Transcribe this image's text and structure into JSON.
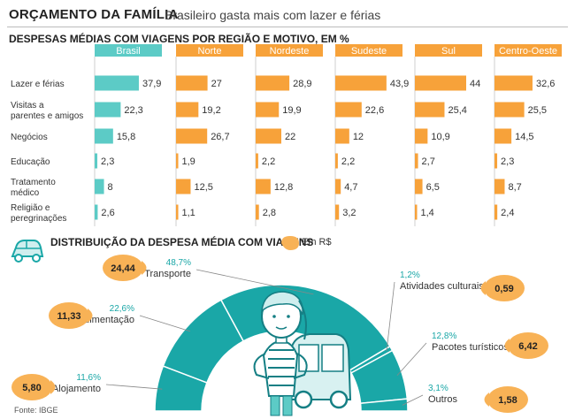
{
  "header": {
    "title": "ORÇAMENTO DA FAMÍLIA",
    "subtitle": "Brasileiro gasta mais com lazer e férias"
  },
  "table_title": "DESPESAS MÉDIAS COM VIAGENS POR REGIÃO E MOTIVO, EM %",
  "section2_title": "DISTRIBUIÇÃO DA DESPESA MÉDIA COM VIAGENS",
  "unit_label": "Em R$",
  "source": "Fonte: IBGE",
  "colors": {
    "brasil": "#5ccbc6",
    "regions": "#f7a23a",
    "teal": "#1aa7a7",
    "bubble": "#f8b256"
  },
  "chart_data": [
    {
      "type": "bar",
      "title": "DESPESAS MÉDIAS COM VIAGENS POR REGIÃO E MOTIVO, EM %",
      "categories": [
        "Lazer e férias",
        "Visitas a parentes e amigos",
        "Negócios",
        "Educação",
        "Tratamento médico",
        "Religião e peregrinações"
      ],
      "category_lines": [
        [
          "Lazer e férias"
        ],
        [
          "Visitas a",
          "parentes e amigos"
        ],
        [
          "Negócios"
        ],
        [
          "Educação"
        ],
        [
          "Tratamento",
          "médico"
        ],
        [
          "Religião e",
          "peregrinações"
        ]
      ],
      "series": [
        {
          "name": "Brasil",
          "values": [
            37.9,
            22.3,
            15.8,
            2.3,
            8,
            2.6
          ],
          "labels": [
            "37,9",
            "22,3",
            "15,8",
            "2,3",
            "8",
            "2,6"
          ]
        },
        {
          "name": "Norte",
          "values": [
            27,
            19.2,
            26.7,
            1.9,
            12.5,
            1.1
          ],
          "labels": [
            "27",
            "19,2",
            "26,7",
            "1,9",
            "12,5",
            "1,1"
          ]
        },
        {
          "name": "Nordeste",
          "values": [
            28.9,
            19.9,
            22,
            2.2,
            12.8,
            2.8
          ],
          "labels": [
            "28,9",
            "19,9",
            "22",
            "2,2",
            "12,8",
            "2,8"
          ]
        },
        {
          "name": "Sudeste",
          "values": [
            43.9,
            22.6,
            12,
            2.2,
            4.7,
            3.2
          ],
          "labels": [
            "43,9",
            "22,6",
            "12",
            "2,2",
            "4,7",
            "3,2"
          ]
        },
        {
          "name": "Sul",
          "values": [
            44,
            25.4,
            10.9,
            2.7,
            6.5,
            1.4
          ],
          "labels": [
            "44",
            "25,4",
            "10,9",
            "2,7",
            "6,5",
            "1,4"
          ]
        },
        {
          "name": "Centro-Oeste",
          "values": [
            32.6,
            25.5,
            14.5,
            2.3,
            8.7,
            2.4
          ],
          "labels": [
            "32,6",
            "25,5",
            "14,5",
            "2,3",
            "8,7",
            "2,4"
          ]
        }
      ]
    },
    {
      "type": "pie",
      "title": "DISTRIBUIÇÃO DA DESPESA MÉDIA COM VIAGENS",
      "categories": [
        "Alojamento",
        "Alimentação",
        "Transporte",
        "Atividades culturais",
        "Pacotes turísticos",
        "Outros"
      ],
      "percent_values": [
        11.6,
        22.6,
        48.7,
        1.2,
        12.8,
        3.1
      ],
      "percent_labels": [
        "11,6%",
        "22,6%",
        "48,7%",
        "1,2%",
        "12,8%",
        "3,1%"
      ],
      "amount_values": [
        5.8,
        11.33,
        24.44,
        0.59,
        6.42,
        1.58
      ],
      "amount_labels": [
        "5,80",
        "11,33",
        "24,44",
        "0,59",
        "6,42",
        "1,58"
      ]
    }
  ]
}
